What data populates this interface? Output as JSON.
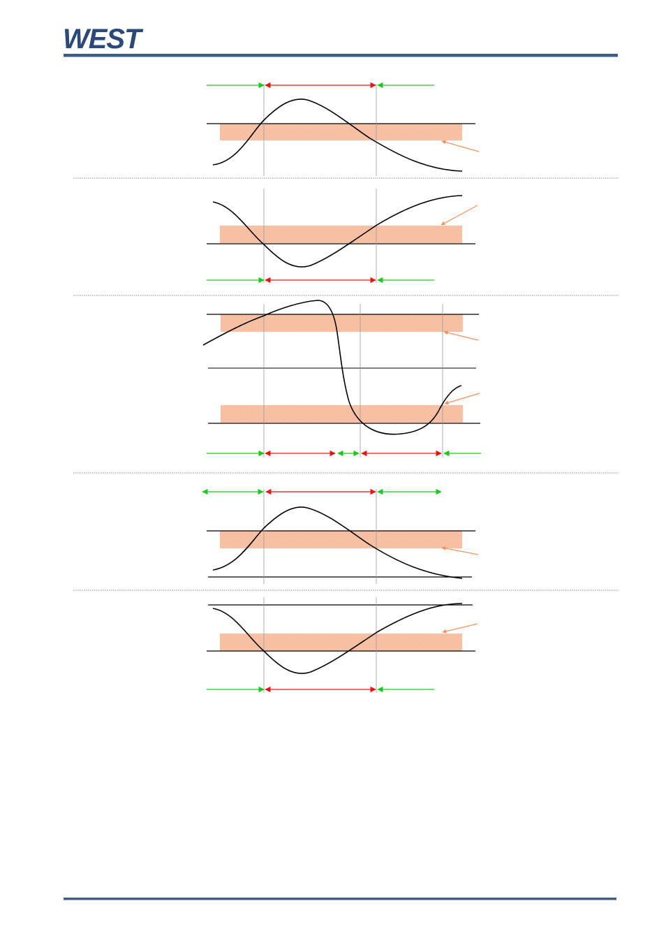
{
  "header": {
    "logo_text": "WEST",
    "brand_color": "#2b4a78",
    "rule_color": "#3d5a8a"
  },
  "diagram_colors": {
    "band": "#f9c4a8",
    "leader": "#f4915f",
    "green_arrow": "#22c622",
    "red_arrow": "#e01818",
    "curve": "#000000",
    "separator": "#666666"
  },
  "diagrams": [
    {
      "name": "alarm-diagram-1"
    },
    {
      "name": "alarm-diagram-2"
    },
    {
      "name": "alarm-diagram-3"
    },
    {
      "name": "alarm-diagram-4"
    },
    {
      "name": "alarm-diagram-5"
    }
  ]
}
